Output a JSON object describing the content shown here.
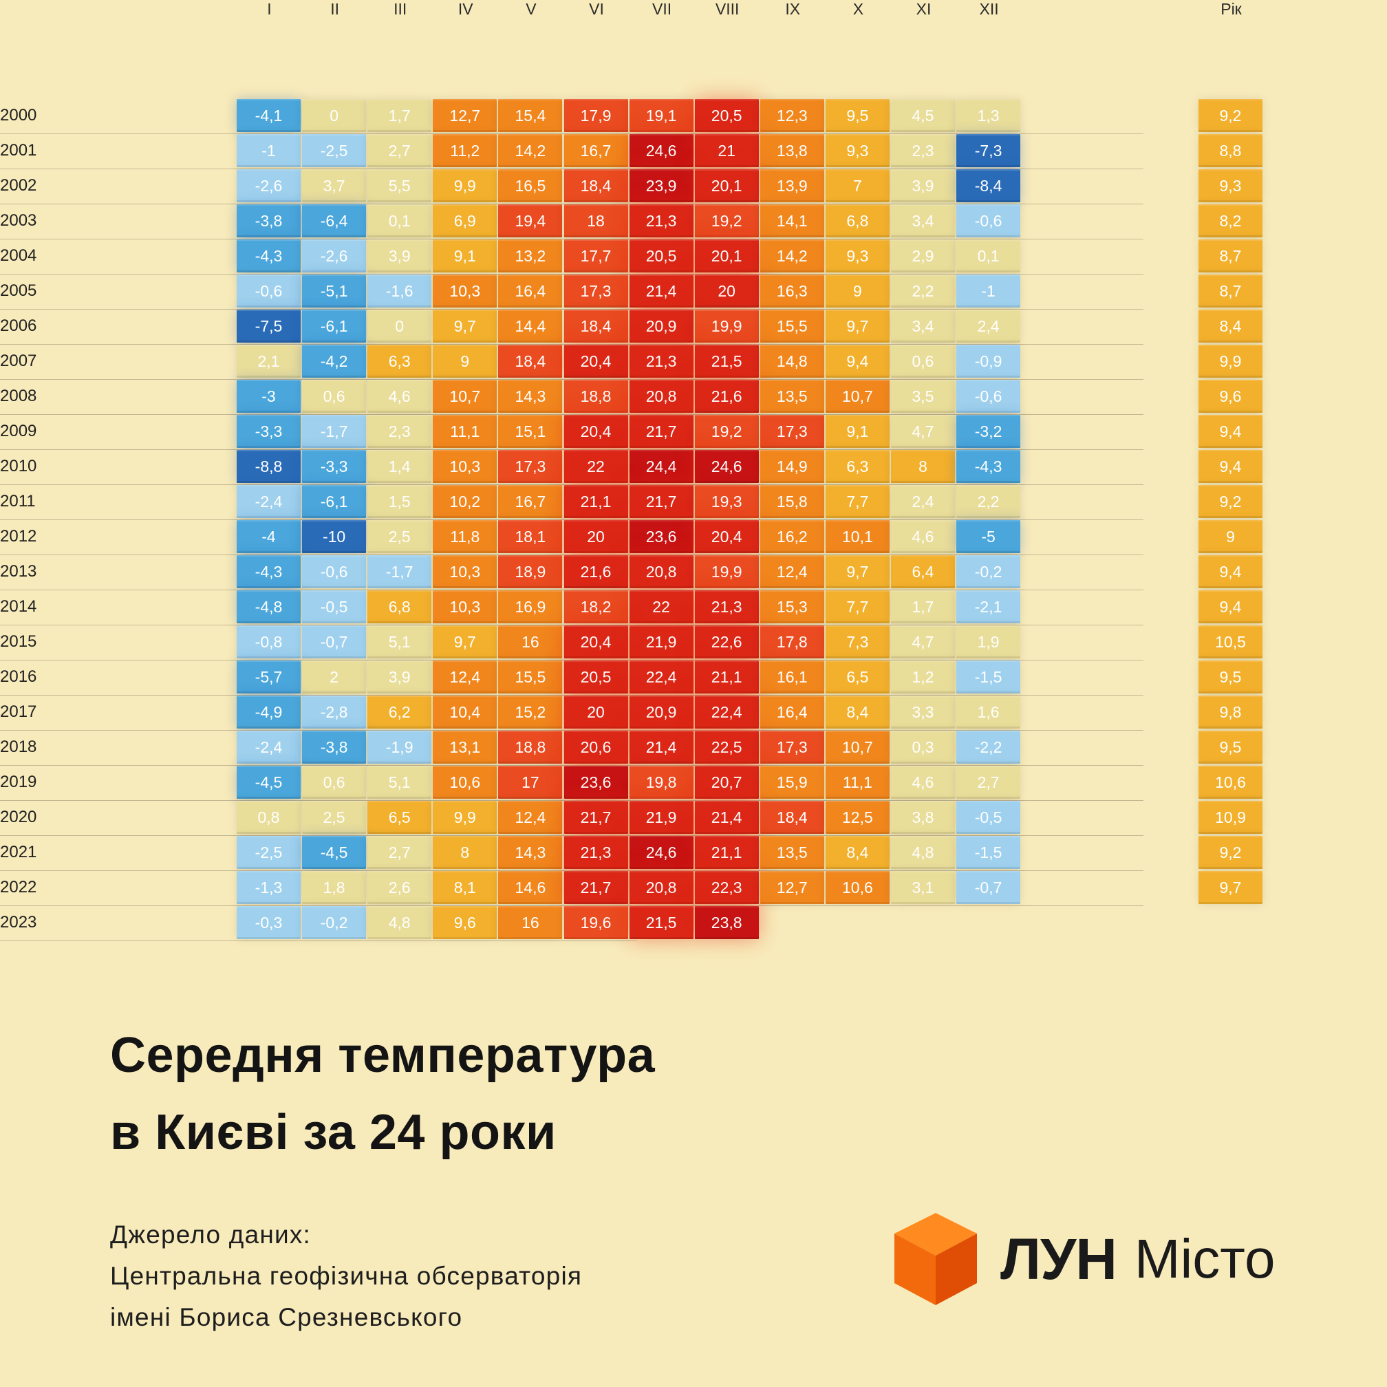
{
  "colors": {
    "background": "#f8ebbb",
    "deep_blue": "#2a6bb8",
    "blue": "#4aa6db",
    "light_blue": "#9fd1ee",
    "pale_yellow": "#e9dd9a",
    "amber": "#f2b02c",
    "orange": "#f1861d",
    "red_orange": "#ea4b20",
    "red": "#dc2717",
    "deep_red": "#c71313"
  },
  "title": {
    "line1": "Середня температура",
    "line2": "в Києві за 24 роки"
  },
  "source": {
    "line1": "Джерело даних:",
    "line2": "Центральна геофізична обсерваторія",
    "line3": "імені Бориса Срезневського"
  },
  "logo": {
    "brand": "ЛУН",
    "sub": "Місто",
    "icon": "orange-cube-icon"
  },
  "chart_data": {
    "type": "heatmap",
    "title": "Середня температура в Києві за 24 роки",
    "months": [
      "I",
      "II",
      "III",
      "IV",
      "V",
      "VI",
      "VII",
      "VIII",
      "IX",
      "X",
      "XI",
      "XII"
    ],
    "annual_label": "Рік",
    "years": [
      "2000",
      "2001",
      "2002",
      "2003",
      "2004",
      "2005",
      "2006",
      "2007",
      "2008",
      "2009",
      "2010",
      "2011",
      "2012",
      "2013",
      "2014",
      "2015",
      "2016",
      "2017",
      "2018",
      "2019",
      "2020",
      "2021",
      "2022",
      "2023"
    ],
    "values": [
      [
        "-4,1",
        "0",
        "1,7",
        "12,7",
        "15,4",
        "17,9",
        "19,1",
        "20,5",
        "12,3",
        "9,5",
        "4,5",
        "1,3"
      ],
      [
        "-1",
        "-2,5",
        "2,7",
        "11,2",
        "14,2",
        "16,7",
        "24,6",
        "21",
        "13,8",
        "9,3",
        "2,3",
        "-7,3"
      ],
      [
        "-2,6",
        "3,7",
        "5,5",
        "9,9",
        "16,5",
        "18,4",
        "23,9",
        "20,1",
        "13,9",
        "7",
        "3,9",
        "-8,4"
      ],
      [
        "-3,8",
        "-6,4",
        "0,1",
        "6,9",
        "19,4",
        "18",
        "21,3",
        "19,2",
        "14,1",
        "6,8",
        "3,4",
        "-0,6"
      ],
      [
        "-4,3",
        "-2,6",
        "3,9",
        "9,1",
        "13,2",
        "17,7",
        "20,5",
        "20,1",
        "14,2",
        "9,3",
        "2,9",
        "0,1"
      ],
      [
        "-0,6",
        "-5,1",
        "-1,6",
        "10,3",
        "16,4",
        "17,3",
        "21,4",
        "20",
        "16,3",
        "9",
        "2,2",
        "-1"
      ],
      [
        "-7,5",
        "-6,1",
        "0",
        "9,7",
        "14,4",
        "18,4",
        "20,9",
        "19,9",
        "15,5",
        "9,7",
        "3,4",
        "2,4"
      ],
      [
        "2,1",
        "-4,2",
        "6,3",
        "9",
        "18,4",
        "20,4",
        "21,3",
        "21,5",
        "14,8",
        "9,4",
        "0,6",
        "-0,9"
      ],
      [
        "-3",
        "0,6",
        "4,6",
        "10,7",
        "14,3",
        "18,8",
        "20,8",
        "21,6",
        "13,5",
        "10,7",
        "3,5",
        "-0,6"
      ],
      [
        "-3,3",
        "-1,7",
        "2,3",
        "11,1",
        "15,1",
        "20,4",
        "21,7",
        "19,2",
        "17,3",
        "9,1",
        "4,7",
        "-3,2"
      ],
      [
        "-8,8",
        "-3,3",
        "1,4",
        "10,3",
        "17,3",
        "22",
        "24,4",
        "24,6",
        "14,9",
        "6,3",
        "8",
        "-4,3"
      ],
      [
        "-2,4",
        "-6,1",
        "1,5",
        "10,2",
        "16,7",
        "21,1",
        "21,7",
        "19,3",
        "15,8",
        "7,7",
        "2,4",
        "2,2"
      ],
      [
        "-4",
        "-10",
        "2,5",
        "11,8",
        "18,1",
        "20",
        "23,6",
        "20,4",
        "16,2",
        "10,1",
        "4,6",
        "-5"
      ],
      [
        "-4,3",
        "-0,6",
        "-1,7",
        "10,3",
        "18,9",
        "21,6",
        "20,8",
        "19,9",
        "12,4",
        "9,7",
        "6,4",
        "-0,2"
      ],
      [
        "-4,8",
        "-0,5",
        "6,8",
        "10,3",
        "16,9",
        "18,2",
        "22",
        "21,3",
        "15,3",
        "7,7",
        "1,7",
        "-2,1"
      ],
      [
        "-0,8",
        "-0,7",
        "5,1",
        "9,7",
        "16",
        "20,4",
        "21,9",
        "22,6",
        "17,8",
        "7,3",
        "4,7",
        "1,9"
      ],
      [
        "-5,7",
        "2",
        "3,9",
        "12,4",
        "15,5",
        "20,5",
        "22,4",
        "21,1",
        "16,1",
        "6,5",
        "1,2",
        "-1,5"
      ],
      [
        "-4,9",
        "-2,8",
        "6,2",
        "10,4",
        "15,2",
        "20",
        "20,9",
        "22,4",
        "16,4",
        "8,4",
        "3,3",
        "1,6"
      ],
      [
        "-2,4",
        "-3,8",
        "-1,9",
        "13,1",
        "18,8",
        "20,6",
        "21,4",
        "22,5",
        "17,3",
        "10,7",
        "0,3",
        "-2,2"
      ],
      [
        "-4,5",
        "0,6",
        "5,1",
        "10,6",
        "17",
        "23,6",
        "19,8",
        "20,7",
        "15,9",
        "11,1",
        "4,6",
        "2,7"
      ],
      [
        "0,8",
        "2,5",
        "6,5",
        "9,9",
        "12,4",
        "21,7",
        "21,9",
        "21,4",
        "18,4",
        "12,5",
        "3,8",
        "-0,5"
      ],
      [
        "-2,5",
        "-4,5",
        "2,7",
        "8",
        "14,3",
        "21,3",
        "24,6",
        "21,1",
        "13,5",
        "8,4",
        "4,8",
        "-1,5"
      ],
      [
        "-1,3",
        "1,8",
        "2,6",
        "8,1",
        "14,6",
        "21,7",
        "20,8",
        "22,3",
        "12,7",
        "10,6",
        "3,1",
        "-0,7"
      ],
      [
        "-0,3",
        "-0,2",
        "4,8",
        "9,6",
        "16",
        "19,6",
        "21,5",
        "23,8",
        null,
        null,
        null,
        null
      ]
    ],
    "annual": [
      "9,2",
      "8,8",
      "9,3",
      "8,2",
      "8,7",
      "8,7",
      "8,4",
      "9,9",
      "9,6",
      "9,4",
      "9,4",
      "9,2",
      "9",
      "9,4",
      "9,4",
      "10,5",
      "9,5",
      "9,8",
      "9,5",
      "10,6",
      "10,9",
      "9,2",
      "9,7",
      null
    ],
    "color_scale": "diverging: blue (cold) → pale yellow → amber → orange → red (hot)",
    "grid": true,
    "legend": "none"
  }
}
